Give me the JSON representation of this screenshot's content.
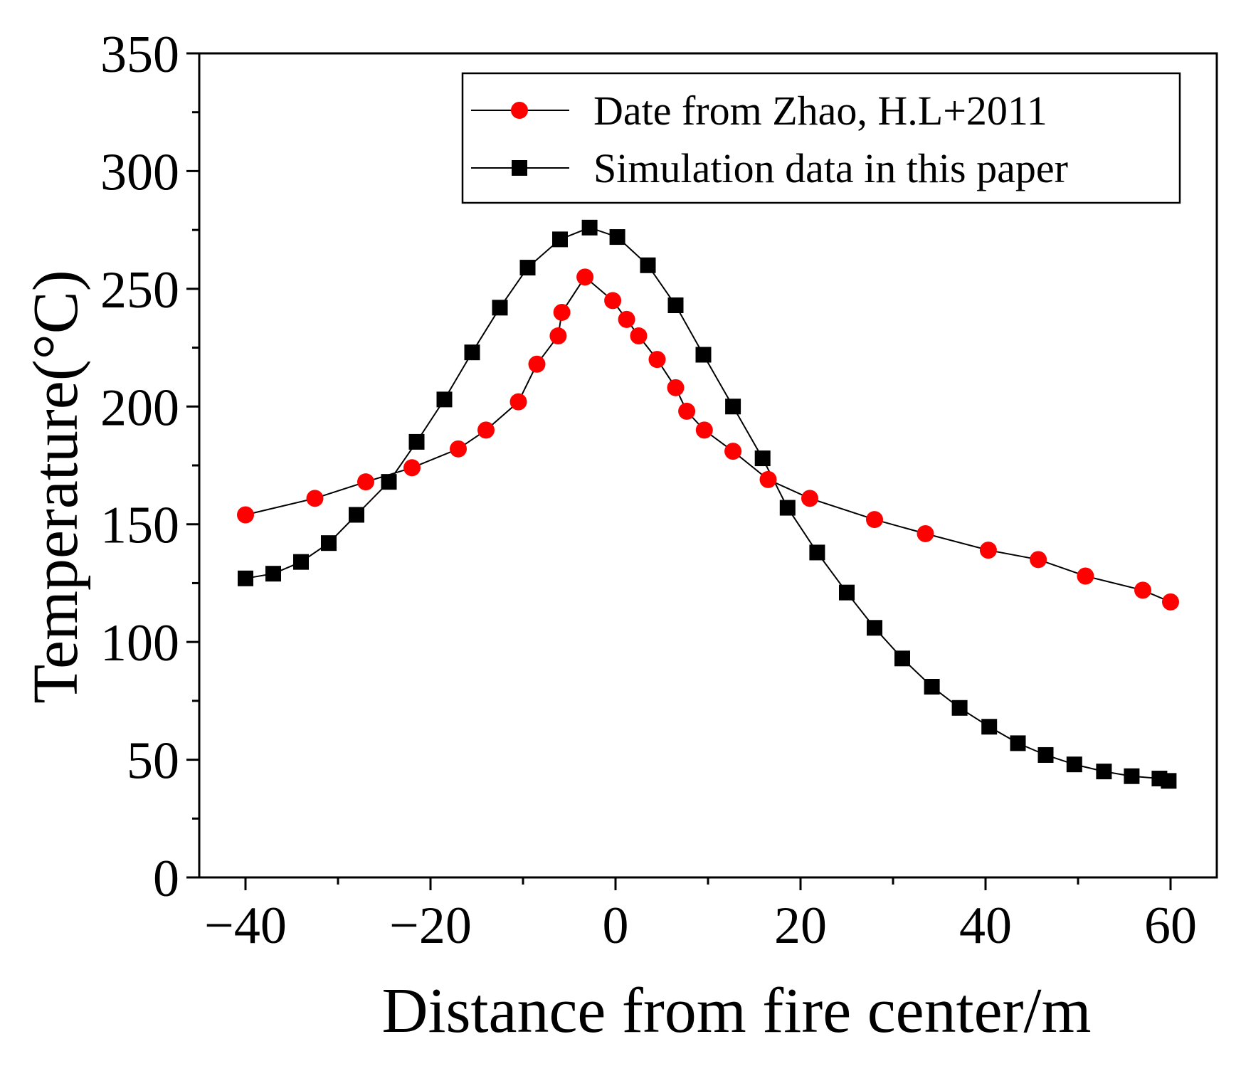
{
  "chart_data": {
    "type": "line",
    "title": "",
    "xlabel": "Distance from fire center/m",
    "ylabel": "Temperature(°C)",
    "xlim": [
      -45,
      65
    ],
    "ylim": [
      0,
      350
    ],
    "xticks": [
      -40,
      -20,
      0,
      20,
      40,
      60
    ],
    "xtick_labels": [
      "−40",
      "−20",
      "0",
      "20",
      "40",
      "60"
    ],
    "yticks": [
      0,
      50,
      100,
      150,
      200,
      250,
      300,
      350
    ],
    "ytick_labels": [
      "0",
      "50",
      "100",
      "150",
      "200",
      "250",
      "300",
      "350"
    ],
    "legend_position": "top-right",
    "series": [
      {
        "name": "Date from Zhao, H.L+2011",
        "color": "#ff0000",
        "marker": "circle",
        "x": [
          -40,
          -32.5,
          -27,
          -22,
          -17,
          -14,
          -10.5,
          -8.5,
          -6.2,
          -5.8,
          -3.3,
          -0.3,
          1.2,
          2.5,
          4.5,
          6.5,
          7.7,
          9.6,
          12.7,
          16.5,
          21,
          28,
          33.5,
          40.3,
          45.7,
          50.8,
          57,
          60
        ],
        "y": [
          154,
          161,
          168,
          174,
          182,
          190,
          202,
          218,
          230,
          240,
          255,
          245,
          237,
          230,
          220,
          208,
          198,
          190,
          181,
          169,
          161,
          152,
          146,
          139,
          135,
          128,
          122,
          117
        ]
      },
      {
        "name": "Simulation data in this paper",
        "color": "#000000",
        "marker": "square",
        "x": [
          -40,
          -37,
          -34,
          -31,
          -28,
          -24.5,
          -21.5,
          -18.5,
          -15.5,
          -12.5,
          -9.5,
          -6,
          -2.8,
          0.2,
          3.5,
          6.5,
          9.5,
          12.7,
          15.9,
          18.6,
          21.8,
          25,
          28,
          31,
          34.2,
          37.2,
          40.4,
          43.5,
          46.5,
          49.6,
          52.8,
          55.8,
          58.8,
          59.8
        ],
        "y": [
          127,
          129,
          134,
          142,
          154,
          168,
          185,
          203,
          223,
          242,
          259,
          271,
          276,
          272,
          260,
          243,
          222,
          200,
          178,
          157,
          138,
          121,
          106,
          93,
          81,
          72,
          64,
          57,
          52,
          48,
          45,
          43,
          42,
          41
        ]
      }
    ]
  }
}
